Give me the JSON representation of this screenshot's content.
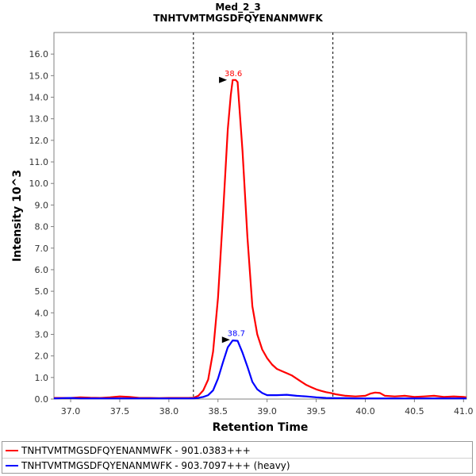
{
  "chart_data": {
    "type": "line",
    "title": "Med_2_3",
    "subtitle": "TNHTVMTMGSDFQYENANMWFK",
    "xlabel": "Retention Time",
    "ylabel": "Intensity 10^3",
    "xlim": [
      36.83,
      41.03
    ],
    "ylim": [
      0.0,
      17.0
    ],
    "x_ticks": [
      "37.0",
      "37.5",
      "38.0",
      "38.5",
      "39.0",
      "39.5",
      "40.0",
      "40.5",
      "41.0"
    ],
    "x_tick_values": [
      37.0,
      37.5,
      38.0,
      38.5,
      39.0,
      39.5,
      40.0,
      40.5,
      41.0
    ],
    "y_ticks": [
      "0.0",
      "1.0",
      "2.0",
      "3.0",
      "4.0",
      "5.0",
      "6.0",
      "7.0",
      "8.0",
      "9.0",
      "10.0",
      "11.0",
      "12.0",
      "13.0",
      "14.0",
      "15.0",
      "16.0"
    ],
    "y_tick_values": [
      0,
      1,
      2,
      3,
      4,
      5,
      6,
      7,
      8,
      9,
      10,
      11,
      12,
      13,
      14,
      15,
      16
    ],
    "vlines": [
      38.25,
      39.67
    ],
    "grid": false,
    "legend_position": "bottom",
    "series": [
      {
        "name": "TNHTVMTMGSDFQYENANMWFK - 901.0383+++",
        "color": "#ff0000",
        "peak_label": "38.6",
        "peak_x": 38.64,
        "peak_y": 14.8,
        "x": [
          36.83,
          37.0,
          37.1,
          37.2,
          37.3,
          37.4,
          37.5,
          37.6,
          37.7,
          37.8,
          37.9,
          38.0,
          38.1,
          38.2,
          38.25,
          38.3,
          38.35,
          38.4,
          38.45,
          38.5,
          38.55,
          38.6,
          38.63,
          38.65,
          38.68,
          38.7,
          38.75,
          38.8,
          38.85,
          38.9,
          38.95,
          39.0,
          39.05,
          39.1,
          39.15,
          39.2,
          39.25,
          39.3,
          39.35,
          39.4,
          39.45,
          39.5,
          39.55,
          39.6,
          39.65,
          39.7,
          39.8,
          39.9,
          40.0,
          40.05,
          40.1,
          40.15,
          40.2,
          40.3,
          40.4,
          40.5,
          40.6,
          40.7,
          40.8,
          40.9,
          41.0,
          41.03
        ],
        "y": [
          0.05,
          0.05,
          0.08,
          0.06,
          0.05,
          0.08,
          0.12,
          0.1,
          0.05,
          0.05,
          0.04,
          0.05,
          0.05,
          0.05,
          0.06,
          0.15,
          0.4,
          0.9,
          2.2,
          4.7,
          8.5,
          12.5,
          14.1,
          14.8,
          14.8,
          14.7,
          11.5,
          7.5,
          4.3,
          3.0,
          2.3,
          1.9,
          1.6,
          1.4,
          1.3,
          1.2,
          1.1,
          0.95,
          0.8,
          0.65,
          0.55,
          0.45,
          0.38,
          0.32,
          0.28,
          0.22,
          0.15,
          0.12,
          0.15,
          0.25,
          0.3,
          0.28,
          0.15,
          0.12,
          0.15,
          0.1,
          0.12,
          0.15,
          0.1,
          0.12,
          0.1,
          0.08
        ]
      },
      {
        "name": "TNHTVMTMGSDFQYENANMWFK - 903.7097+++ (heavy)",
        "color": "#0000ff",
        "peak_label": "38.7",
        "peak_x": 38.67,
        "peak_y": 2.75,
        "x": [
          36.83,
          37.0,
          37.1,
          37.2,
          37.3,
          37.4,
          37.5,
          37.6,
          37.7,
          37.8,
          37.9,
          38.0,
          38.1,
          38.2,
          38.25,
          38.3,
          38.35,
          38.4,
          38.45,
          38.5,
          38.55,
          38.6,
          38.65,
          38.7,
          38.75,
          38.8,
          38.85,
          38.9,
          38.95,
          39.0,
          39.1,
          39.2,
          39.3,
          39.4,
          39.5,
          39.6,
          39.7,
          39.8,
          39.9,
          40.0,
          40.2,
          40.4,
          40.6,
          40.8,
          41.0,
          41.03
        ],
        "y": [
          0.03,
          0.05,
          0.03,
          0.03,
          0.03,
          0.03,
          0.03,
          0.03,
          0.03,
          0.03,
          0.03,
          0.03,
          0.03,
          0.03,
          0.03,
          0.05,
          0.1,
          0.18,
          0.4,
          0.95,
          1.7,
          2.4,
          2.72,
          2.7,
          2.15,
          1.5,
          0.8,
          0.45,
          0.28,
          0.18,
          0.18,
          0.2,
          0.15,
          0.12,
          0.08,
          0.05,
          0.04,
          0.04,
          0.03,
          0.03,
          0.03,
          0.03,
          0.03,
          0.03,
          0.03,
          0.03
        ]
      }
    ]
  }
}
